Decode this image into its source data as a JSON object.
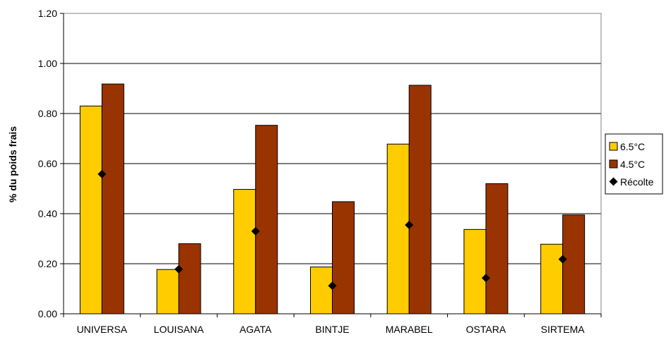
{
  "chart_data": {
    "type": "bar",
    "title": "",
    "xlabel": "",
    "ylabel": "% du poids frais",
    "ylim": [
      0,
      1.2
    ],
    "yticks": [
      "0.00",
      "0.20",
      "0.40",
      "0.60",
      "0.80",
      "1.00",
      "1.20"
    ],
    "grid": true,
    "legend_position": "right",
    "categories": [
      "UNIVERSA",
      "LOUISANA",
      "AGATA",
      "BINTJE",
      "MARABEL",
      "OSTARA",
      "SIRTEMA"
    ],
    "series": [
      {
        "name": "6.5°C",
        "kind": "bar",
        "color": "#FFCC00",
        "values": [
          0.83,
          0.177,
          0.497,
          0.187,
          0.678,
          0.337,
          0.278
        ]
      },
      {
        "name": "4.5°C",
        "kind": "bar",
        "color": "#993300",
        "values": [
          0.918,
          0.28,
          0.753,
          0.448,
          0.913,
          0.52,
          0.395
        ]
      },
      {
        "name": "Récolte",
        "kind": "marker",
        "marker": "diamond",
        "color": "#000000",
        "values": [
          0.558,
          0.178,
          0.33,
          0.112,
          0.355,
          0.143,
          0.218
        ]
      }
    ]
  }
}
